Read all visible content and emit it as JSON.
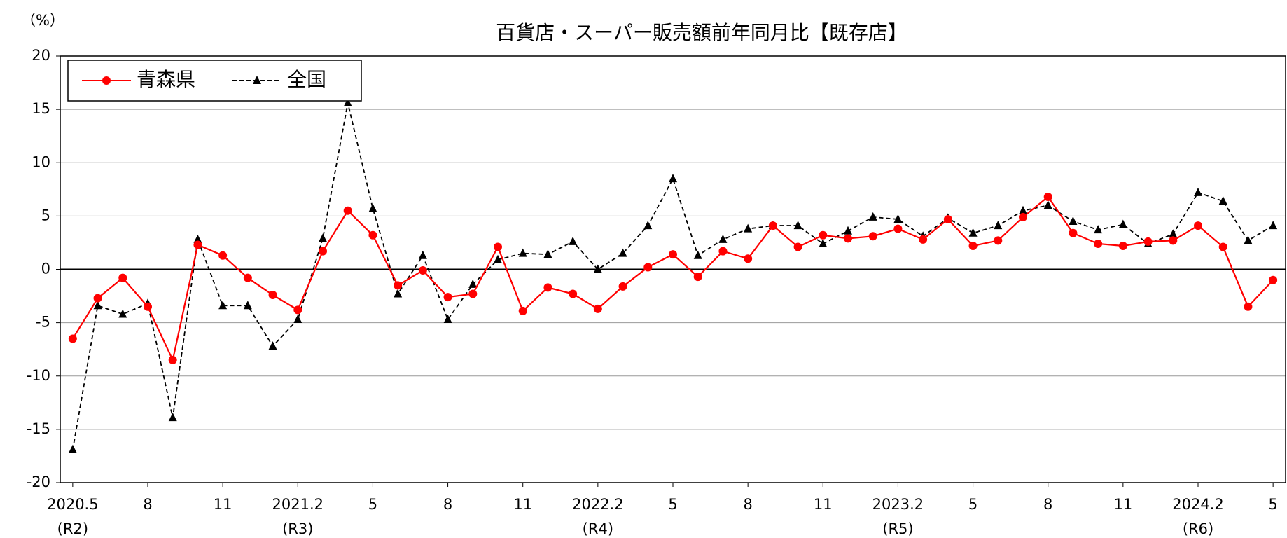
{
  "chart_data": {
    "type": "line",
    "title": "百貨店・スーパー販売額前年同月比【既存店】",
    "y_unit": "（%）",
    "categories": [
      "2020.5",
      null,
      null,
      "8",
      null,
      null,
      "11",
      null,
      null,
      "2021.2",
      null,
      null,
      "5",
      null,
      null,
      "8",
      null,
      null,
      "11",
      null,
      null,
      "2022.2",
      null,
      null,
      "5",
      null,
      null,
      "8",
      null,
      null,
      "11",
      null,
      null,
      "2023.2",
      null,
      null,
      "5",
      null,
      null,
      "8",
      null,
      null,
      "11",
      null,
      null,
      "2024.2",
      null,
      null,
      "5"
    ],
    "era_labels": [
      "(R2)",
      null,
      null,
      null,
      null,
      null,
      null,
      null,
      null,
      "(R3)",
      null,
      null,
      null,
      null,
      null,
      null,
      null,
      null,
      null,
      null,
      null,
      "(R4)",
      null,
      null,
      null,
      null,
      null,
      null,
      null,
      null,
      null,
      null,
      null,
      "(R5)",
      null,
      null,
      null,
      null,
      null,
      null,
      null,
      null,
      null,
      null,
      null,
      "(R6)",
      null,
      null,
      null
    ],
    "series": [
      {
        "name": "青森県",
        "color": "#ff0000",
        "marker": "circle",
        "dashed": false,
        "values": [
          -6.5,
          -2.7,
          -0.8,
          -3.5,
          -8.5,
          2.3,
          1.3,
          -0.8,
          -2.4,
          -3.8,
          1.7,
          5.5,
          3.2,
          -1.5,
          -0.1,
          -2.6,
          -2.3,
          2.1,
          -3.9,
          -1.7,
          -2.3,
          -3.7,
          -1.6,
          0.2,
          1.4,
          -0.7,
          1.7,
          1.0,
          4.1,
          2.1,
          3.2,
          2.9,
          3.1,
          3.8,
          2.8,
          4.7,
          2.2,
          2.7,
          4.9,
          6.8,
          3.4,
          2.4,
          2.2,
          2.6,
          2.7,
          4.1,
          2.1,
          -3.5,
          -1.0
        ]
      },
      {
        "name": "全国",
        "color": "#000000",
        "marker": "triangle",
        "dashed": true,
        "values": [
          -16.9,
          -3.4,
          -4.2,
          -3.2,
          -13.9,
          2.8,
          -3.4,
          -3.4,
          -7.2,
          -4.7,
          2.9,
          15.6,
          5.7,
          -2.3,
          1.3,
          -4.7,
          -1.4,
          0.9,
          1.5,
          1.4,
          2.6,
          0.0,
          1.5,
          4.1,
          8.5,
          1.3,
          2.8,
          3.8,
          4.1,
          4.1,
          2.4,
          3.6,
          4.9,
          4.7,
          3.1,
          4.8,
          3.4,
          4.1,
          5.5,
          6.0,
          4.5,
          3.7,
          4.2,
          2.4,
          3.3,
          7.2,
          6.4,
          2.7,
          4.1
        ]
      }
    ],
    "ylim": [
      -20,
      20
    ],
    "yticks": [
      -20,
      -15,
      -10,
      -5,
      0,
      5,
      10,
      15,
      20
    ],
    "grid": true,
    "legend": "upper-left"
  }
}
